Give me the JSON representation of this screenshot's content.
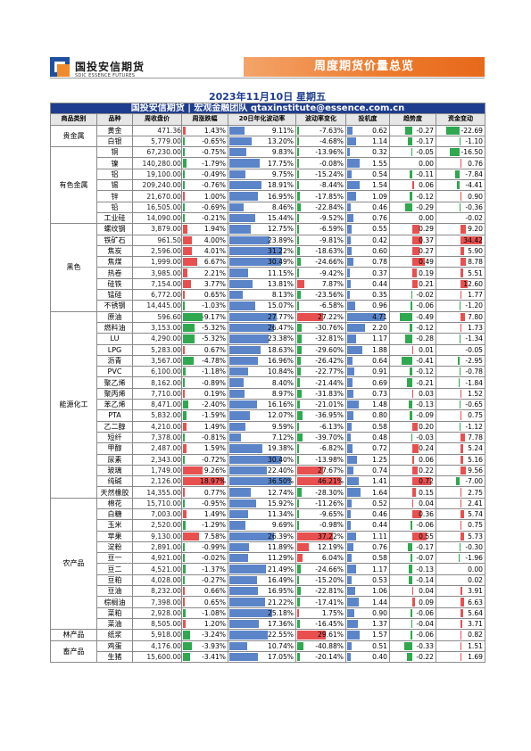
{
  "logo": {
    "cn": "国投安信期货",
    "en": "SDIC ESSENCE FUTURES"
  },
  "banner": {
    "title": "周度期货价量总览"
  },
  "date": "2023年11月10日 星期五",
  "table_header": "国投安信期货 | 宏观金融团队  qtaxinstitute@essence.com.cn",
  "columns": [
    "商品类别",
    "品种",
    "周收盘价",
    "周涨跌幅",
    "20日年化波动率",
    "波动率变化",
    "投机度",
    "趋势度",
    "资金变动"
  ],
  "groups": [
    {
      "category": "贵金属",
      "rows": [
        [
          "黄金",
          "471.36",
          "1.43%",
          "9.11%",
          "-7.63%",
          "0.62",
          "-0.27",
          "-22.69"
        ],
        [
          "白银",
          "5,779.00",
          "-0.65%",
          "13.20%",
          "-4.68%",
          "1.14",
          "-0.17",
          "-1.10"
        ]
      ]
    },
    {
      "category": "有色金属",
      "rows": [
        [
          "铜",
          "67,230.00",
          "-0.75%",
          "9.83%",
          "-13.96%",
          "0.32",
          "-0.05",
          "-16.50"
        ],
        [
          "镍",
          "140,280.00",
          "-1.79%",
          "17.75%",
          "-0.08%",
          "1.55",
          "0.00",
          "0.76"
        ],
        [
          "铝",
          "19,100.00",
          "-0.49%",
          "9.75%",
          "-15.24%",
          "0.54",
          "-0.11",
          "-7.84"
        ],
        [
          "锡",
          "209,240.00",
          "-0.76%",
          "18.91%",
          "-8.44%",
          "1.54",
          "0.06",
          "-4.41"
        ],
        [
          "锌",
          "21,670.00",
          "1.00%",
          "16.95%",
          "-17.85%",
          "1.09",
          "-0.12",
          "0.90"
        ],
        [
          "铅",
          "16,505.00",
          "-0.69%",
          "8.46%",
          "-22.84%",
          "0.46",
          "-0.29",
          "-0.36"
        ],
        [
          "工业硅",
          "14,090.00",
          "-0.21%",
          "15.44%",
          "-9.52%",
          "0.76",
          "0.00",
          "-0.02"
        ]
      ]
    },
    {
      "category": "黑色",
      "rows": [
        [
          "螺纹钢",
          "3,879.00",
          "1.94%",
          "12.75%",
          "-6.59%",
          "0.55",
          "0.29",
          "9.20"
        ],
        [
          "铁矿石",
          "961.50",
          "4.00%",
          "23.89%",
          "-9.81%",
          "0.42",
          "0.37",
          "34.42"
        ],
        [
          "焦炭",
          "2,596.00",
          "4.01%",
          "31.22%",
          "-18.63%",
          "0.60",
          "0.27",
          "5.90"
        ],
        [
          "焦煤",
          "1,999.00",
          "6.67%",
          "30.49%",
          "-24.66%",
          "0.78",
          "0.49",
          "8.78"
        ],
        [
          "热卷",
          "3,985.00",
          "2.21%",
          "11.15%",
          "-9.42%",
          "0.37",
          "0.19",
          "5.51"
        ],
        [
          "硅铁",
          "7,154.00",
          "3.77%",
          "13.81%",
          "7.87%",
          "0.44",
          "0.21",
          "12.60"
        ],
        [
          "锰硅",
          "6,772.00",
          "0.65%",
          "8.13%",
          "-23.56%",
          "0.35",
          "-0.02",
          "1.77"
        ],
        [
          "不锈钢",
          "14,445.00",
          "-1.03%",
          "15.07%",
          "-6.58%",
          "0.96",
          "-0.06",
          "-1.20"
        ]
      ]
    },
    {
      "category": "能源化工",
      "rows": [
        [
          "原油",
          "596.60",
          "-9.17%",
          "27.77%",
          "27.22%",
          "4.71",
          "-0.49",
          "7.80"
        ],
        [
          "燃料油",
          "3,153.00",
          "-5.32%",
          "26.47%",
          "-30.76%",
          "2.20",
          "-0.12",
          "1.73"
        ],
        [
          "LU",
          "4,290.00",
          "-5.32%",
          "23.38%",
          "-32.81%",
          "1.17",
          "-0.28",
          "-1.34"
        ],
        [
          "LPG",
          "5,283.00",
          "0.67%",
          "18.63%",
          "-29.60%",
          "1.88",
          "0.01",
          "-0.05"
        ],
        [
          "沥青",
          "3,567.00",
          "-4.78%",
          "16.96%",
          "-26.42%",
          "0.64",
          "-0.41",
          "-2.95"
        ],
        [
          "PVC",
          "6,100.00",
          "-1.18%",
          "10.84%",
          "-22.77%",
          "0.91",
          "-0.12",
          "-0.78"
        ],
        [
          "聚乙烯",
          "8,162.00",
          "-0.89%",
          "8.40%",
          "-21.44%",
          "0.69",
          "-0.21",
          "-1.84"
        ],
        [
          "聚丙烯",
          "7,710.00",
          "0.19%",
          "8.97%",
          "-31.83%",
          "0.73",
          "0.03",
          "1.52"
        ],
        [
          "苯乙烯",
          "8,471.00",
          "-2.40%",
          "16.16%",
          "-21.01%",
          "1.48",
          "-0.13",
          "-0.65"
        ],
        [
          "PTA",
          "5,832.00",
          "-1.59%",
          "12.07%",
          "-36.95%",
          "0.80",
          "-0.09",
          "0.75"
        ],
        [
          "乙二醇",
          "4,210.00",
          "1.49%",
          "9.59%",
          "-6.13%",
          "0.58",
          "0.20",
          "-1.12"
        ],
        [
          "短纤",
          "7,378.00",
          "-0.81%",
          "7.12%",
          "-39.70%",
          "0.48",
          "-0.03",
          "7.78"
        ],
        [
          "甲醇",
          "2,487.00",
          "1.59%",
          "19.38%",
          "-6.82%",
          "0.72",
          "0.24",
          "5.24"
        ],
        [
          "尿素",
          "2,343.00",
          "-0.72%",
          "30.40%",
          "-13.98%",
          "1.25",
          "0.06",
          "5.16"
        ],
        [
          "玻璃",
          "1,749.00",
          "9.26%",
          "22.40%",
          "27.67%",
          "0.74",
          "0.22",
          "9.56"
        ],
        [
          "纯碱",
          "2,126.00",
          "18.97%",
          "36.50%",
          "46.21%",
          "1.41",
          "0.72",
          "-7.00"
        ],
        [
          "天然橡胶",
          "14,355.00",
          "0.77%",
          "12.74%",
          "-28.30%",
          "1.64",
          "0.15",
          "2.75"
        ]
      ]
    },
    {
      "category": "农产品",
      "rows": [
        [
          "棉花",
          "15,710.00",
          "-0.95%",
          "15.92%",
          "-11.26%",
          "0.52",
          "0.04",
          "2.41"
        ],
        [
          "白糖",
          "7,003.00",
          "1.49%",
          "11.34%",
          "-9.65%",
          "0.46",
          "0.36",
          "5.74"
        ],
        [
          "玉米",
          "2,520.00",
          "-1.29%",
          "9.69%",
          "-0.98%",
          "0.44",
          "-0.06",
          "0.75"
        ],
        [
          "苹果",
          "9,130.00",
          "7.58%",
          "26.39%",
          "37.22%",
          "1.11",
          "0.55",
          "5.73"
        ],
        [
          "淀粉",
          "2,891.00",
          "-0.99%",
          "11.89%",
          "12.19%",
          "0.76",
          "-0.17",
          "-0.30"
        ],
        [
          "豆一",
          "4,921.00",
          "-0.02%",
          "11.29%",
          "6.04%",
          "0.58",
          "-0.07",
          "-1.96"
        ],
        [
          "豆二",
          "4,521.00",
          "-1.37%",
          "21.49%",
          "-24.66%",
          "1.17",
          "-0.13",
          "0.00"
        ],
        [
          "豆粕",
          "4,028.00",
          "-0.27%",
          "16.49%",
          "-15.20%",
          "0.53",
          "-0.14",
          "0.02"
        ],
        [
          "豆油",
          "8,232.00",
          "0.66%",
          "16.95%",
          "-22.81%",
          "1.06",
          "0.04",
          "3.91"
        ],
        [
          "棕榈油",
          "7,398.00",
          "0.65%",
          "21.22%",
          "-17.41%",
          "1.44",
          "0.09",
          "6.63"
        ],
        [
          "菜粕",
          "2,928.00",
          "-1.08%",
          "25.18%",
          "1.75%",
          "0.90",
          "-0.06",
          "5.64"
        ],
        [
          "菜油",
          "8,505.00",
          "1.20%",
          "17.36%",
          "-16.45%",
          "1.37",
          "-0.04",
          "3.71"
        ]
      ]
    },
    {
      "category": "林产品",
      "rows": [
        [
          "纸浆",
          "5,918.00",
          "-3.24%",
          "22.55%",
          "29.61%",
          "1.57",
          "-0.06",
          "0.82"
        ]
      ]
    },
    {
      "category": "畜产品",
      "rows": [
        [
          "鸡蛋",
          "4,176.00",
          "-3.93%",
          "10.74%",
          "-40.88%",
          "0.51",
          "-0.33",
          "1.51"
        ],
        [
          "生猪",
          "15,600.00",
          "-3.41%",
          "17.05%",
          "-20.14%",
          "0.40",
          "-0.22",
          "1.69"
        ]
      ]
    }
  ],
  "colors": {
    "up": "#e03535",
    "down": "#2fa84f",
    "bar": "#5b85c8",
    "header": "#1f3d8f",
    "banner": "#ec7a2c"
  }
}
